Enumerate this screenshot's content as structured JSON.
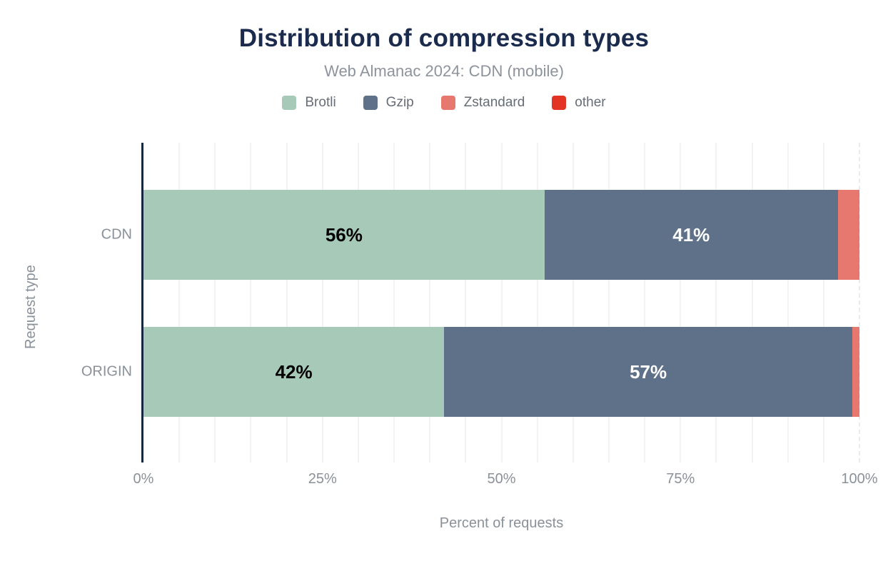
{
  "header": {
    "title": "Distribution of compression types",
    "subtitle": "Web Almanac 2024: CDN (mobile)"
  },
  "legend": {
    "items": [
      {
        "label": "Brotli",
        "color": "#a6c9b8"
      },
      {
        "label": "Gzip",
        "color": "#5f7189"
      },
      {
        "label": "Zstandard",
        "color": "#e7786f"
      },
      {
        "label": "other",
        "color": "#e23325"
      }
    ]
  },
  "chart_data": {
    "type": "bar",
    "orientation": "horizontal",
    "stacked": true,
    "title": "Distribution of compression types",
    "subtitle": "Web Almanac 2024: CDN (mobile)",
    "categories": [
      "CDN",
      "ORIGIN"
    ],
    "series": [
      {
        "name": "Brotli",
        "color": "#a6c9b8",
        "label_color": "#000000",
        "values": [
          56,
          42
        ]
      },
      {
        "name": "Gzip",
        "color": "#5f7189",
        "label_color": "#ffffff",
        "values": [
          41,
          57
        ]
      },
      {
        "name": "Zstandard",
        "color": "#e7786f",
        "label_color": "#000000",
        "values": [
          3,
          1
        ]
      },
      {
        "name": "other",
        "color": "#e23325",
        "label_color": "#ffffff",
        "values": [
          0,
          0
        ]
      }
    ],
    "data_labels": {
      "format": "{value}%",
      "min_value_to_show": 5
    },
    "xlabel": "Percent of requests",
    "ylabel": "Request type",
    "x_ticks": [
      "0%",
      "25%",
      "50%",
      "75%",
      "100%"
    ],
    "xlim": [
      0,
      100
    ],
    "grid": {
      "shown": true,
      "vertical_every_percent": 5,
      "dashed_line_at": 100
    },
    "legend_position": "top",
    "colors": {
      "title": "#1b2b4d",
      "subtitle": "#8d939d",
      "axis_line": "#17263f",
      "axis_text": "#8a9199",
      "gridline": "#f3f3f3",
      "background": "#ffffff"
    }
  }
}
